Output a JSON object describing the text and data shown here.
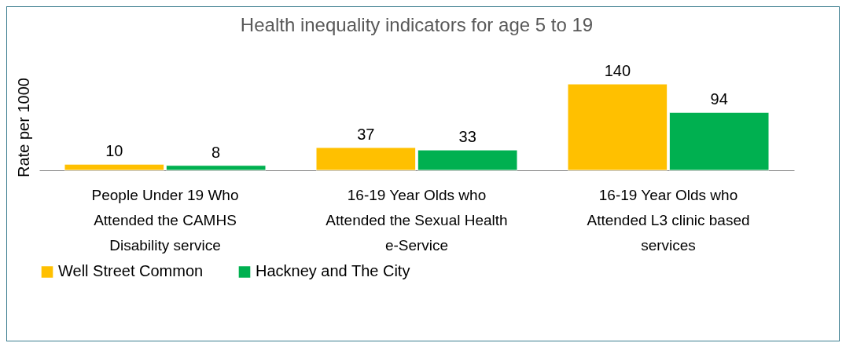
{
  "chart_data": {
    "type": "bar",
    "title": "Health inequality indicators for age 5 to 19",
    "ylabel": "Rate per 1000",
    "categories": [
      "People Under 19 Who Attended the CAMHS Disability service",
      "16-19 Year Olds who Attended the Sexual Health e-Service",
      "16-19 Year Olds who Attended L3 clinic based services"
    ],
    "series": [
      {
        "name": "Well Street Common",
        "color": "#ffc000",
        "values": [
          10,
          37,
          140
        ]
      },
      {
        "name": "Hackney and The City",
        "color": "#00b050",
        "values": [
          8,
          33,
          94
        ]
      }
    ],
    "data_labels": true,
    "legend": "bottom",
    "grid": false,
    "tick_labels": "x"
  }
}
